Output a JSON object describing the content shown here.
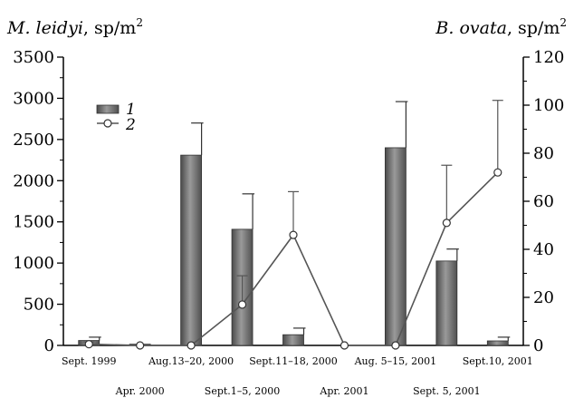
{
  "chart_data": {
    "type": "bar",
    "left_axis_title": {
      "species": "M. leidyi",
      "unit": ", sp/m",
      "sup": "2"
    },
    "right_axis_title": {
      "species": "B. ovata",
      "unit": ", sp/m",
      "sup": "2"
    },
    "categories": [
      "Sept. 1999",
      "Apr. 2000",
      "Aug.13–20, 2000",
      "Sept.1–5, 2000",
      "Sept.11–18, 2000",
      "Apr. 2001",
      "Aug. 5–15, 2001",
      "Sept. 5, 2001",
      "Sept.10, 2001"
    ],
    "y_left": {
      "lim": [
        0,
        3500
      ],
      "ticks": [
        0,
        500,
        1000,
        1500,
        2000,
        2500,
        3000,
        3500
      ]
    },
    "y_right": {
      "lim": [
        0,
        120
      ],
      "ticks": [
        0,
        20,
        40,
        60,
        80,
        100,
        120
      ]
    },
    "series": [
      {
        "name": "1",
        "kind": "bar",
        "axis": "left",
        "values": [
          60,
          15,
          2310,
          1410,
          130,
          0,
          2400,
          1025,
          55
        ],
        "error_upper": [
          100,
          0,
          2700,
          1840,
          210,
          0,
          2960,
          1170,
          100
        ],
        "color": "#6a6a6a"
      },
      {
        "name": "2",
        "kind": "line",
        "axis": "right",
        "values": [
          0.5,
          0,
          0,
          17,
          46,
          0,
          0,
          51,
          72
        ],
        "error_upper": [
          1.5,
          0,
          0,
          29,
          64,
          0,
          0,
          75,
          102
        ],
        "color": "#555555"
      }
    ],
    "legend": {
      "position": "upper-left",
      "labels": [
        "1",
        "2"
      ]
    }
  }
}
